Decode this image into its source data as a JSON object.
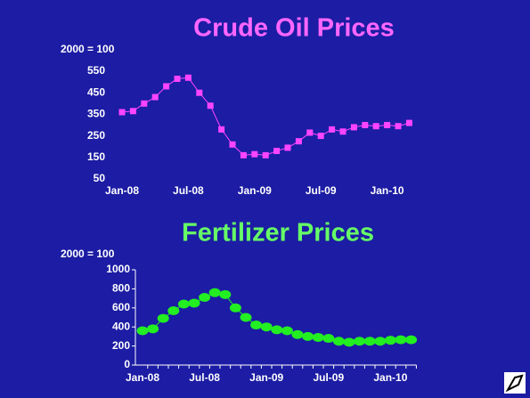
{
  "chart_data": [
    {
      "type": "line",
      "title": "Crude Oil Prices",
      "y_label": "2000 = 100",
      "categories": [
        "Jan-08",
        null,
        null,
        null,
        null,
        null,
        "Jul-08",
        null,
        null,
        null,
        null,
        null,
        "Jan-09",
        null,
        null,
        null,
        null,
        null,
        "Jul-09",
        null,
        null,
        null,
        null,
        null,
        "Jan-10",
        null,
        null
      ],
      "values": [
        360,
        365,
        400,
        430,
        480,
        515,
        520,
        450,
        390,
        280,
        210,
        160,
        165,
        160,
        180,
        195,
        225,
        265,
        250,
        280,
        270,
        290,
        300,
        295,
        300,
        295,
        310
      ],
      "color": "#ff44ff",
      "marker": "square",
      "ylim": [
        50,
        550
      ],
      "yticks": [
        50,
        150,
        250,
        350,
        450,
        550
      ]
    },
    {
      "type": "line",
      "title": "Fertilizer Prices",
      "y_label": "2000 = 100",
      "categories": [
        "Jan-08",
        null,
        null,
        null,
        null,
        null,
        "Jul-08",
        null,
        null,
        null,
        null,
        null,
        "Jan-09",
        null,
        null,
        null,
        null,
        null,
        "Jul-09",
        null,
        null,
        null,
        null,
        null,
        "Jan-10",
        null,
        null
      ],
      "values": [
        360,
        380,
        490,
        570,
        640,
        650,
        710,
        760,
        740,
        600,
        500,
        420,
        400,
        370,
        360,
        320,
        300,
        290,
        280,
        250,
        240,
        250,
        250,
        250,
        260,
        265,
        265
      ],
      "color": "#22ee22",
      "marker": "circle",
      "ylim": [
        0,
        1000
      ],
      "yticks": [
        0,
        200,
        400,
        600,
        800,
        1000
      ]
    }
  ]
}
